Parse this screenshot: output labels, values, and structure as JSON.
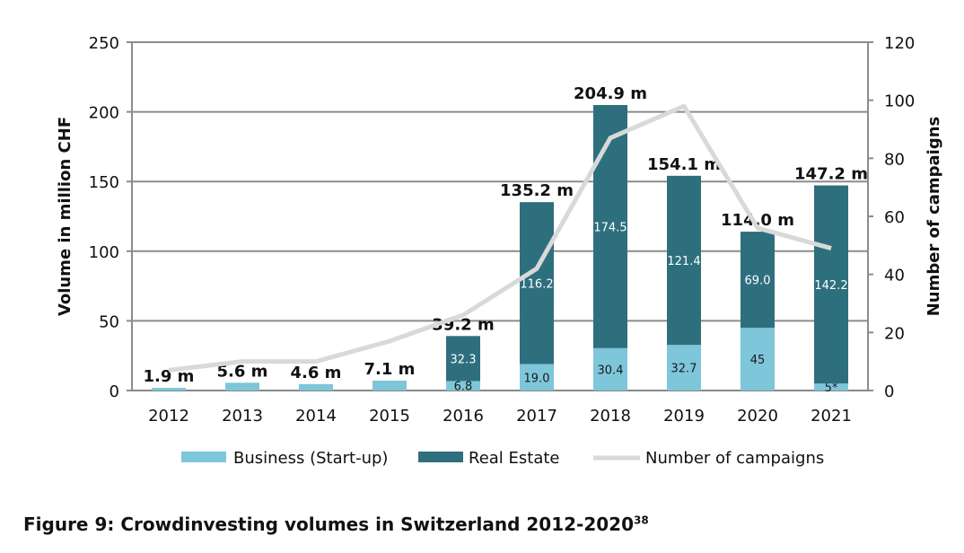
{
  "chart_data": {
    "type": "bar",
    "stacked": true,
    "categories": [
      "2012",
      "2013",
      "2014",
      "2015",
      "2016",
      "2017",
      "2018",
      "2019",
      "2020",
      "2021"
    ],
    "series": [
      {
        "name": "Business (Start-up)",
        "color": "#7ec6d9",
        "values": [
          1.9,
          5.6,
          4.6,
          7.1,
          6.8,
          19.0,
          30.4,
          32.7,
          45,
          5
        ],
        "labels": [
          "",
          "",
          "",
          "",
          "6.8",
          "19.0",
          "30.4",
          "32.7",
          "45",
          "5*"
        ]
      },
      {
        "name": "Real Estate",
        "color": "#2e6f7e",
        "values": [
          0,
          0,
          0,
          0,
          32.3,
          116.2,
          174.5,
          121.4,
          69.0,
          142.2
        ],
        "labels": [
          "",
          "",
          "",
          "",
          "32.3",
          "116.2",
          "174.5",
          "121.4",
          "69.0",
          "142.2"
        ]
      }
    ],
    "line": {
      "name": "Number of campaigns",
      "color": "#d9d9d9",
      "values": [
        7,
        10,
        10,
        17,
        26,
        42,
        87,
        98,
        56,
        49
      ]
    },
    "totals": [
      "1.9 m",
      "5.6 m",
      "4.6 m",
      "7.1 m",
      "39.2 m",
      "135.2 m",
      "204.9 m",
      "154.1 m",
      "114.0 m",
      "147.2 m"
    ],
    "ylabel": "Volume in million CHF",
    "y2label": "Number of campaigns",
    "ylim": [
      0,
      250
    ],
    "yticks": [
      0,
      50,
      100,
      150,
      200,
      250
    ],
    "y2lim": [
      0,
      120
    ],
    "y2ticks": [
      0,
      20,
      40,
      60,
      80,
      100,
      120
    ],
    "grid": true,
    "legend": "bottom"
  },
  "caption": {
    "text": "Figure 9: Crowdinvesting volumes in Switzerland 2012-2020",
    "sup": "38"
  }
}
